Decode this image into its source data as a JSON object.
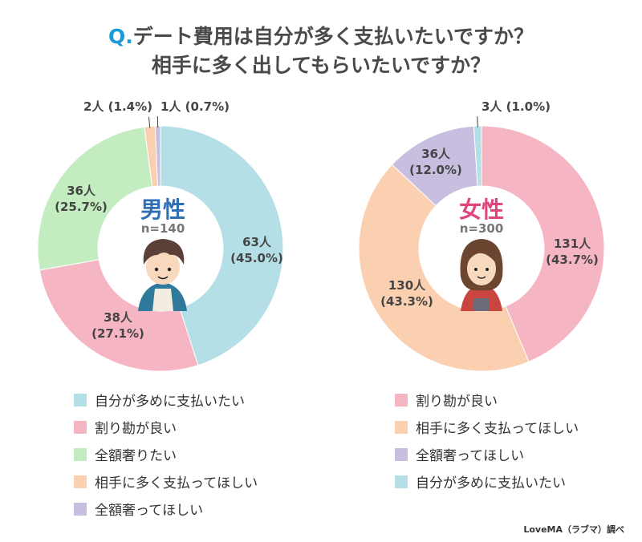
{
  "title": {
    "q": "Q.",
    "line1": "デート費用は自分が多く支払いたいですか？",
    "line2": "相手に多く出してもらいたいですか？"
  },
  "colors": {
    "blue": "#b5dfe6",
    "pink": "#f5b5c3",
    "green": "#c3ecc0",
    "peach": "#fbd0b0",
    "purple": "#c8bfe0",
    "male": "#2f6fb5",
    "female": "#e0457d",
    "q": "#1a9ad6"
  },
  "chart_data": [
    {
      "type": "pie",
      "donut": true,
      "center_title": "男性",
      "n": "n=140",
      "slices": [
        {
          "name": "自分が多めに支払いたい",
          "count": 63,
          "percent": 45.0,
          "label": "63人",
          "pct_label": "(45.0%)",
          "color": "#b5dfe6"
        },
        {
          "name": "割り勘が良い",
          "count": 38,
          "percent": 27.1,
          "label": "38人",
          "pct_label": "(27.1%)",
          "color": "#f5b5c3"
        },
        {
          "name": "全額奢りたい",
          "count": 36,
          "percent": 25.7,
          "label": "36人",
          "pct_label": "(25.7%)",
          "color": "#c3ecc0"
        },
        {
          "name": "相手に多く支払ってほしい",
          "count": 2,
          "percent": 1.4,
          "label": "2人 (1.4%)",
          "color": "#fbd0b0"
        },
        {
          "name": "全額奢ってほしい",
          "count": 1,
          "percent": 0.7,
          "label": "1人 (0.7%)",
          "color": "#c8bfe0"
        }
      ]
    },
    {
      "type": "pie",
      "donut": true,
      "center_title": "女性",
      "n": "n=300",
      "slices": [
        {
          "name": "割り勘が良い",
          "count": 131,
          "percent": 43.7,
          "label": "131人",
          "pct_label": "(43.7%)",
          "color": "#f5b5c3"
        },
        {
          "name": "相手に多く支払ってほしい",
          "count": 130,
          "percent": 43.3,
          "label": "130人",
          "pct_label": "(43.3%)",
          "color": "#fbd0b0"
        },
        {
          "name": "全額奢ってほしい",
          "count": 36,
          "percent": 12.0,
          "label": "36人",
          "pct_label": "(12.0%)",
          "color": "#c8bfe0"
        },
        {
          "name": "自分が多めに支払いたい",
          "count": 3,
          "percent": 1.0,
          "label": "3人 (1.0%)",
          "color": "#b5dfe6"
        }
      ]
    }
  ],
  "credit": "LoveMA（ラブマ）調べ"
}
